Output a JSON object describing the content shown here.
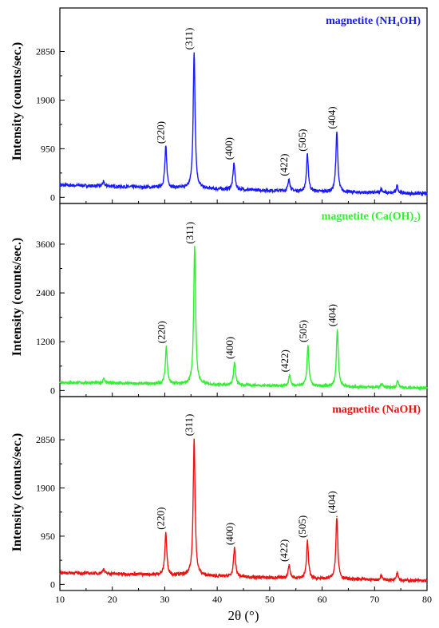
{
  "figure": {
    "xlabel": "2θ (°)",
    "ylabel": "Intensity (counts/sec.)"
  },
  "chart_data": [
    {
      "type": "line",
      "title": "magnetite (NH₄OH)",
      "color": "#1a1aff",
      "xlim": [
        10,
        80
      ],
      "ylim": [
        -120,
        3700
      ],
      "yticks": [
        0,
        950,
        1900,
        2850
      ],
      "xticks": [
        10,
        20,
        30,
        40,
        50,
        60,
        70,
        80
      ],
      "baseline": [
        [
          10,
          240
        ],
        [
          25,
          200
        ],
        [
          40,
          160
        ],
        [
          55,
          120
        ],
        [
          70,
          90
        ],
        [
          80,
          70
        ]
      ],
      "peaks": [
        {
          "x": 18.3,
          "height": 80,
          "label": ""
        },
        {
          "x": 30.2,
          "height": 800,
          "label": "(220)"
        },
        {
          "x": 35.6,
          "height": 2650,
          "label": "(311)"
        },
        {
          "x": 43.2,
          "height": 520,
          "label": "(400)"
        },
        {
          "x": 53.7,
          "height": 230,
          "label": "(422)"
        },
        {
          "x": 57.2,
          "height": 720,
          "label": "(505)"
        },
        {
          "x": 62.8,
          "height": 1170,
          "label": "(404)"
        },
        {
          "x": 71.3,
          "height": 80,
          "label": ""
        },
        {
          "x": 74.3,
          "height": 150,
          "label": ""
        }
      ]
    },
    {
      "type": "line",
      "title": "magnetite (Ca(OH)₂)",
      "color": "#33ee33",
      "xlim": [
        10,
        80
      ],
      "ylim": [
        -150,
        4600
      ],
      "yticks": [
        0,
        1200,
        2400,
        3600
      ],
      "xticks": [
        10,
        20,
        30,
        40,
        50,
        60,
        70,
        80
      ],
      "baseline": [
        [
          10,
          200
        ],
        [
          25,
          170
        ],
        [
          40,
          140
        ],
        [
          55,
          110
        ],
        [
          70,
          80
        ],
        [
          80,
          60
        ]
      ],
      "peaks": [
        {
          "x": 18.4,
          "height": 110,
          "label": ""
        },
        {
          "x": 30.3,
          "height": 920,
          "label": "(220)"
        },
        {
          "x": 35.7,
          "height": 3380,
          "label": "(311)"
        },
        {
          "x": 43.3,
          "height": 560,
          "label": "(400)"
        },
        {
          "x": 53.8,
          "height": 260,
          "label": "(422)"
        },
        {
          "x": 57.3,
          "height": 1000,
          "label": "(505)"
        },
        {
          "x": 62.9,
          "height": 1400,
          "label": "(404)"
        },
        {
          "x": 71.4,
          "height": 90,
          "label": ""
        },
        {
          "x": 74.4,
          "height": 160,
          "label": ""
        }
      ]
    },
    {
      "type": "line",
      "title": "magnetite (NaOH)",
      "color": "#ee1111",
      "xlim": [
        10,
        80
      ],
      "ylim": [
        -120,
        3700
      ],
      "yticks": [
        0,
        950,
        1900,
        2850
      ],
      "xticks": [
        10,
        20,
        30,
        40,
        50,
        60,
        70,
        80
      ],
      "baseline": [
        [
          10,
          230
        ],
        [
          25,
          200
        ],
        [
          40,
          160
        ],
        [
          55,
          120
        ],
        [
          70,
          90
        ],
        [
          80,
          70
        ]
      ],
      "peaks": [
        {
          "x": 18.3,
          "height": 90,
          "label": ""
        },
        {
          "x": 30.2,
          "height": 830,
          "label": "(220)"
        },
        {
          "x": 35.6,
          "height": 2690,
          "label": "(311)"
        },
        {
          "x": 43.3,
          "height": 560,
          "label": "(400)"
        },
        {
          "x": 53.7,
          "height": 260,
          "label": "(422)"
        },
        {
          "x": 57.2,
          "height": 740,
          "label": "(505)"
        },
        {
          "x": 62.8,
          "height": 1230,
          "label": "(404)"
        },
        {
          "x": 71.3,
          "height": 90,
          "label": ""
        },
        {
          "x": 74.3,
          "height": 160,
          "label": ""
        }
      ]
    }
  ]
}
